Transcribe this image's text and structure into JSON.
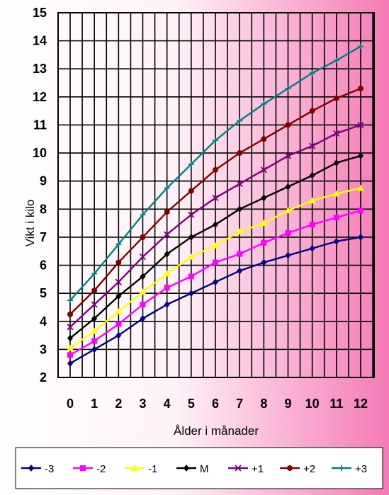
{
  "chart_data": {
    "type": "line",
    "title": "",
    "xlabel": "Ålder i månader",
    "ylabel": "Vikt i kilo",
    "xlim": [
      0,
      12
    ],
    "ylim": [
      2,
      15
    ],
    "x_ticks": [
      "0",
      "1",
      "2",
      "3",
      "4",
      "5",
      "6",
      "7",
      "8",
      "9",
      "10",
      "11",
      "12"
    ],
    "y_ticks": [
      "2",
      "3",
      "4",
      "5",
      "6",
      "7",
      "8",
      "9",
      "10",
      "11",
      "12",
      "13",
      "14",
      "15"
    ],
    "grid": true,
    "legend_position": "bottom",
    "x": [
      0,
      1,
      2,
      3,
      4,
      5,
      6,
      7,
      8,
      9,
      10,
      11,
      12
    ],
    "series": [
      {
        "name": "-3",
        "color": "#000080",
        "marker": "diamond",
        "values": [
          2.5,
          3.0,
          3.5,
          4.1,
          4.6,
          5.0,
          5.4,
          5.8,
          6.1,
          6.35,
          6.6,
          6.85,
          7.0
        ]
      },
      {
        "name": "-2",
        "color": "#ff00ff",
        "marker": "square",
        "values": [
          2.8,
          3.3,
          3.9,
          4.6,
          5.2,
          5.6,
          6.1,
          6.4,
          6.8,
          7.15,
          7.45,
          7.7,
          7.95
        ]
      },
      {
        "name": "-1",
        "color": "#ffff00",
        "marker": "triangle",
        "values": [
          3.05,
          3.65,
          4.35,
          5.05,
          5.7,
          6.3,
          6.7,
          7.2,
          7.5,
          7.95,
          8.3,
          8.55,
          8.75
        ]
      },
      {
        "name": "M",
        "color": "#000000",
        "marker": "diamond",
        "values": [
          3.4,
          4.1,
          4.9,
          5.6,
          6.4,
          7.0,
          7.45,
          8.0,
          8.4,
          8.8,
          9.2,
          9.65,
          9.9
        ]
      },
      {
        "name": "+1",
        "color": "#800080",
        "marker": "x",
        "values": [
          3.8,
          4.6,
          5.4,
          6.3,
          7.1,
          7.8,
          8.4,
          8.9,
          9.4,
          9.9,
          10.25,
          10.7,
          11.0
        ]
      },
      {
        "name": "+2",
        "color": "#800000",
        "marker": "circle",
        "values": [
          4.25,
          5.1,
          6.1,
          7.0,
          7.9,
          8.65,
          9.4,
          10.0,
          10.5,
          11.0,
          11.5,
          11.95,
          12.3
        ]
      },
      {
        "name": "+3",
        "color": "#008080",
        "marker": "plus",
        "values": [
          4.75,
          5.7,
          6.75,
          7.8,
          8.75,
          9.6,
          10.45,
          11.15,
          11.75,
          12.3,
          12.85,
          13.3,
          13.8
        ]
      }
    ]
  }
}
